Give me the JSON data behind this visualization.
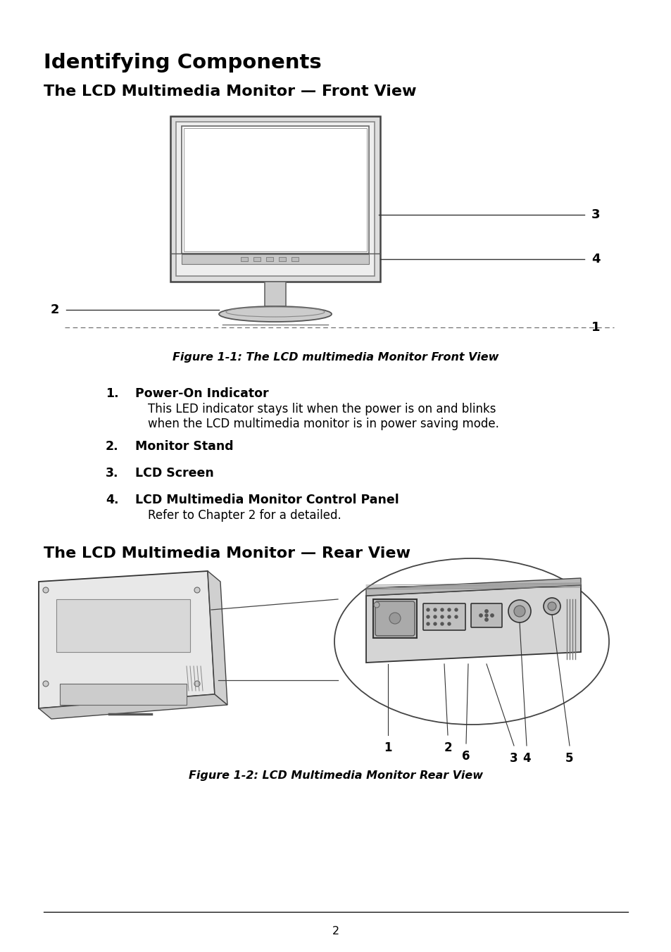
{
  "bg_color": "#ffffff",
  "title1": "Identifying Components",
  "subtitle1": "The LCD Multimedia Monitor — Front View",
  "subtitle2": "The LCD Multimedia Monitor — Rear View",
  "fig_caption1": "Figure 1-1: The LCD multimedia Monitor Front View",
  "fig_caption2": "Figure 1-2: LCD Multimedia Monitor Rear View",
  "items": [
    {
      "num": "1.",
      "bold": "Power-On Indicator",
      "text": "This LED indicator stays lit when the power is on and blinks\nwhen the LCD multimedia monitor is in power saving mode."
    },
    {
      "num": "2.",
      "bold": "Monitor Stand",
      "text": ""
    },
    {
      "num": "3.",
      "bold": "LCD Screen",
      "text": ""
    },
    {
      "num": "4.",
      "bold": "LCD Multimedia Monitor Control Panel",
      "text": "Refer to Chapter 2 for a detailed."
    }
  ],
  "page_num": "2",
  "text_color": "#000000",
  "lw_main": 1.5,
  "lw_thin": 0.8,
  "gray_outer": "#cccccc",
  "gray_screen": "#ffffff",
  "gray_bezel": "#aaaaaa",
  "gray_stand": "#bbbbbb"
}
